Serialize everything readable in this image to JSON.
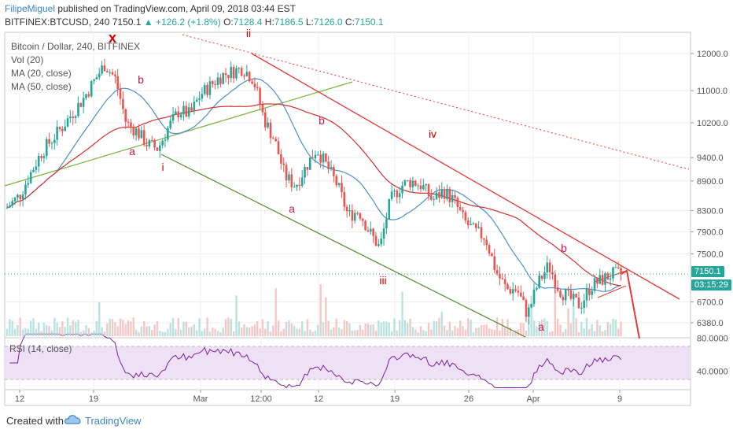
{
  "header": {
    "author": "FilipeMiguel",
    "published": "published on TradingView.com, April 09, 2018 03:44 EST",
    "symbol": "BITFINEX:BTCUSD, 240",
    "last": "7150.1",
    "change_arrow": "▲",
    "change": "+126.2 (+1.8%)",
    "o_label": "O:",
    "o": "7128.4",
    "h_label": "H:",
    "h": "7186.5",
    "l_label": "L:",
    "l": "7126.0",
    "c_label": "C:",
    "c": "7150.1"
  },
  "legend": {
    "title": "Bitcoin / Dollar, 240, BITFINEX",
    "vol": "Vol (20)",
    "ma20": "MA (20, close)",
    "ma50": "MA (50, close)",
    "rsi": "RSI (14, close)"
  },
  "price_tags": {
    "last": "7150.1",
    "timer": "03:15:29"
  },
  "footer": {
    "created": "Created with",
    "brand": "TradingView",
    "logo_icon": "tradingview-cloud-icon"
  },
  "colors": {
    "up": "#26a69a",
    "down": "#ef5350",
    "ma20": "#4a90c8",
    "ma50": "#d32f2f",
    "rsi": "#7b1fa2",
    "rsi_band": "#efe1f5",
    "green_line": "#7cb342",
    "red_line": "#e53935"
  },
  "chart_data": {
    "type": "candlestick",
    "symbol": "BITFINEX:BTCUSD",
    "timeframe": "240",
    "y_ticks": [
      12000.0,
      11000.0,
      10200.0,
      9400.0,
      8900.0,
      8300.0,
      7900.0,
      7500.0,
      6700.0,
      6380.0
    ],
    "rsi_ticks": [
      80.0,
      40.0
    ],
    "x_ticks": [
      "12",
      "19",
      "Mar",
      "12:00",
      "12",
      "19",
      "26",
      "Apr",
      "9"
    ],
    "close_path": [
      [
        "Feb 10",
        8200
      ],
      [
        "Feb 12",
        8600
      ],
      [
        "Feb 14",
        9500
      ],
      [
        "Feb 16",
        10100
      ],
      [
        "Feb 18",
        10800
      ],
      [
        "Feb 20",
        11700
      ],
      [
        "Feb 21",
        11300
      ],
      [
        "Feb 22",
        10200
      ],
      [
        "Feb 23",
        10000
      ],
      [
        "Feb 24",
        9700
      ],
      [
        "Feb 25",
        9600
      ],
      [
        "Feb 26",
        10100
      ],
      [
        "Feb 27",
        10500
      ],
      [
        "Feb 28",
        10400
      ],
      [
        "Mar 1",
        10900
      ],
      [
        "Mar 3",
        11400
      ],
      [
        "Mar 5",
        11600
      ],
      [
        "Mar 6",
        11300
      ],
      [
        "Mar 7",
        10300
      ],
      [
        "Mar 8",
        9800
      ],
      [
        "Mar 9",
        9000
      ],
      [
        "Mar 10",
        8800
      ],
      [
        "Mar 12",
        9600
      ],
      [
        "Mar 13",
        9200
      ],
      [
        "Mar 14",
        8800
      ],
      [
        "Mar 15",
        8200
      ],
      [
        "Mar 16",
        8300
      ],
      [
        "Mar 17",
        7900
      ],
      [
        "Mar 18",
        7600
      ],
      [
        "Mar 19",
        8500
      ],
      [
        "Mar 20",
        8800
      ],
      [
        "Mar 21",
        8900
      ],
      [
        "Mar 22",
        8800
      ],
      [
        "Mar 23",
        8500
      ],
      [
        "Mar 24",
        8700
      ],
      [
        "Mar 25",
        8500
      ],
      [
        "Mar 26",
        8100
      ],
      [
        "Mar 27",
        7900
      ],
      [
        "Mar 28",
        7800
      ],
      [
        "Mar 29",
        7200
      ],
      [
        "Mar 30",
        6900
      ],
      [
        "Mar 31",
        6900
      ],
      [
        "Apr 1",
        6500
      ],
      [
        "Apr 2",
        7000
      ],
      [
        "Apr 3",
        7300
      ],
      [
        "Apr 4",
        6900
      ],
      [
        "Apr 5",
        6750
      ],
      [
        "Apr 6",
        6650
      ],
      [
        "Apr 7",
        6950
      ],
      [
        "Apr 8",
        7050
      ],
      [
        "Apr 9",
        7150
      ]
    ],
    "volume": "Vol (20)",
    "moving_averages": [
      "MA (20, close)",
      "MA (50, close)"
    ],
    "rsi": "RSI (14, close)",
    "annotations": [
      {
        "text": "x",
        "color": "#d50000"
      },
      {
        "text": "ii",
        "color": "#d50000"
      },
      {
        "text": "b",
        "color": "#c2185b"
      },
      {
        "text": "a",
        "color": "#c2185b"
      },
      {
        "text": "i",
        "color": "#d50000"
      },
      {
        "text": "b",
        "color": "#c2185b"
      },
      {
        "text": "iv",
        "color": "#d50000"
      },
      {
        "text": "a",
        "color": "#c2185b"
      },
      {
        "text": "iii",
        "color": "#d50000"
      },
      {
        "text": "b",
        "color": "#c2185b"
      },
      {
        "text": "a",
        "color": "#c2185b"
      }
    ]
  }
}
